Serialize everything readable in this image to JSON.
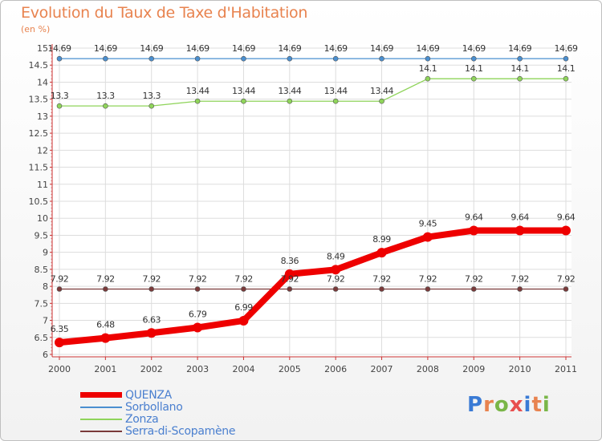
{
  "header": {
    "title": "Evolution du Taux de Taxe d'Habitation",
    "subtitle": "(en %)"
  },
  "logo": {
    "text": "Proxiti",
    "colors": [
      "#3a7bd5",
      "#e8834f",
      "#7ab648",
      "#e84f4f",
      "#3a7bd5",
      "#e8834f",
      "#7ab648"
    ]
  },
  "chart_data": {
    "type": "line",
    "title": "Evolution du Taux de Taxe d'Habitation",
    "subtitle": "(en %)",
    "xlabel": "",
    "ylabel": "",
    "x": [
      "2000",
      "2001",
      "2002",
      "2003",
      "2004",
      "2005",
      "2006",
      "2007",
      "2008",
      "2009",
      "2010",
      "2011"
    ],
    "ylim": [
      6,
      15
    ],
    "yticks": [
      "6",
      "6.5",
      "7",
      "7.5",
      "8",
      "8.5",
      "9",
      "9.5",
      "10",
      "10.5",
      "11",
      "11.5",
      "12",
      "12.5",
      "13",
      "13.5",
      "14",
      "14.5",
      "15"
    ],
    "grid": true,
    "legend_position": "bottom-left",
    "series": [
      {
        "name": "Sorbollano",
        "color": "#4a8fd0",
        "values": [
          14.69,
          14.69,
          14.69,
          14.69,
          14.69,
          14.69,
          14.69,
          14.69,
          14.69,
          14.69,
          14.69,
          14.69
        ],
        "labels": [
          "14.69",
          "14.69",
          "14.69",
          "14.69",
          "14.69",
          "14.69",
          "14.69",
          "14.69",
          "14.69",
          "14.69",
          "14.69",
          "14.69"
        ]
      },
      {
        "name": "Zonza",
        "color": "#8fd45a",
        "values": [
          13.3,
          13.3,
          13.3,
          13.44,
          13.44,
          13.44,
          13.44,
          13.44,
          14.1,
          14.1,
          14.1,
          14.1
        ],
        "labels": [
          "13.3",
          "13.3",
          "13.3",
          "13.44",
          "13.44",
          "13.44",
          "13.44",
          "13.44",
          "14.1",
          "14.1",
          "14.1",
          "14.1"
        ]
      },
      {
        "name": "Serra-di-Scopamène",
        "color": "#7a3a3a",
        "values": [
          7.92,
          7.92,
          7.92,
          7.92,
          7.92,
          7.92,
          7.92,
          7.92,
          7.92,
          7.92,
          7.92,
          7.92
        ],
        "labels": [
          "7.92",
          "7.92",
          "7.92",
          "7.92",
          "7.92",
          "7.92",
          "7.92",
          "7.92",
          "7.92",
          "7.92",
          "7.92",
          "7.92"
        ]
      },
      {
        "name": "QUENZA",
        "color": "#ee0000",
        "values": [
          6.35,
          6.48,
          6.63,
          6.79,
          6.99,
          8.36,
          8.49,
          8.99,
          9.45,
          9.64,
          9.64,
          9.64
        ],
        "labels": [
          "6.35",
          "6.48",
          "6.63",
          "6.79",
          "6.99",
          "8.36",
          "8.49",
          "8.99",
          "9.45",
          "9.64",
          "9.64",
          "9.64"
        ]
      }
    ],
    "legend": [
      "QUENZA",
      "Sorbollano",
      "Zonza",
      "Serra-di-Scopamène"
    ]
  }
}
